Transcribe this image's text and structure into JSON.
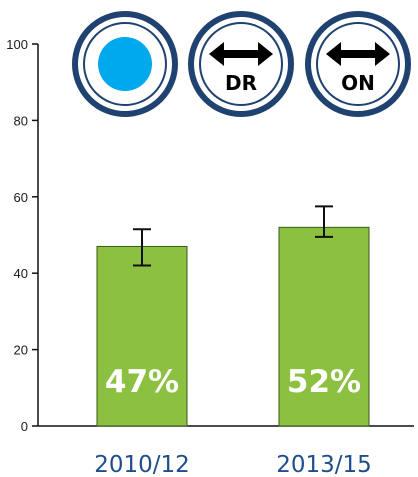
{
  "chart_data": {
    "type": "bar",
    "categories": [
      "2010/12",
      "2013/15"
    ],
    "values": [
      47,
      52
    ],
    "error_low": [
      42,
      49.5
    ],
    "error_high": [
      51.5,
      57.5
    ],
    "data_labels": [
      "47%",
      "52%"
    ],
    "y_ticks": [
      "0",
      "20",
      "40",
      "60",
      "80",
      "100"
    ],
    "ylim": [
      0,
      100
    ],
    "grid": false,
    "title": "",
    "xlabel": "",
    "ylabel": ""
  },
  "icons": [
    {
      "name": "circle-dot-icon",
      "text": ""
    },
    {
      "name": "double-arrow-icon",
      "text": "DR"
    },
    {
      "name": "double-arrow-icon",
      "text": "ON"
    }
  ],
  "colors": {
    "bar_fill": "#8cc040",
    "bar_stroke": "#3a5a1a",
    "category_text": "#1f4e8c",
    "icon_ring": "#1f4270",
    "dot_fill": "#00a9ec"
  }
}
